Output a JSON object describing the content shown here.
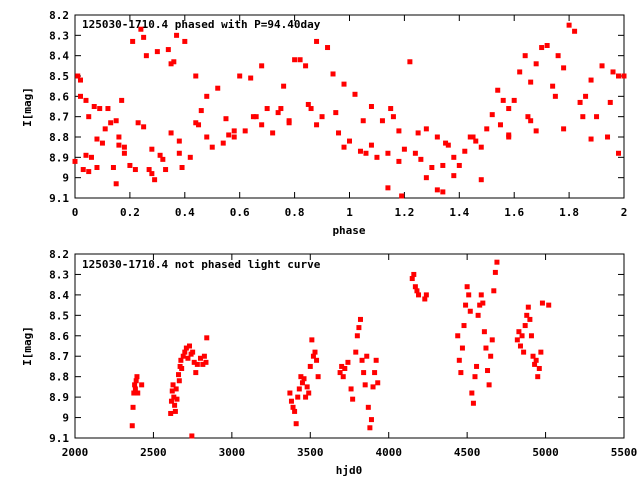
{
  "chart_data": [
    {
      "type": "scatter",
      "title": "125030-1710.4 phased with P=94.40day",
      "xlabel": "phase",
      "ylabel": "I[mag]",
      "xlim": [
        0,
        2
      ],
      "ylim": [
        9.1,
        8.2
      ],
      "y_inverted": true,
      "grid": false,
      "marker_color": "#ff0000",
      "xticks": [
        "0",
        "0.2",
        "0.4",
        "0.6",
        "0.8",
        "1",
        "1.2",
        "1.4",
        "1.6",
        "1.8",
        "2"
      ],
      "yticks": [
        "8.2",
        "8.3",
        "8.4",
        "8.5",
        "8.6",
        "8.7",
        "8.8",
        "8.9",
        "9",
        "9.1"
      ],
      "points": [
        [
          0.0,
          8.92
        ],
        [
          0.01,
          8.5
        ],
        [
          0.02,
          8.6
        ],
        [
          0.03,
          8.96
        ],
        [
          0.04,
          8.62
        ],
        [
          0.05,
          8.97
        ],
        [
          0.06,
          8.9
        ],
        [
          0.07,
          8.65
        ],
        [
          0.08,
          8.95
        ],
        [
          0.09,
          8.66
        ],
        [
          0.1,
          8.83
        ],
        [
          0.11,
          8.76
        ],
        [
          0.12,
          8.66
        ],
        [
          0.13,
          8.73
        ],
        [
          0.14,
          8.95
        ],
        [
          0.15,
          9.03
        ],
        [
          0.16,
          8.8
        ],
        [
          0.17,
          8.62
        ],
        [
          0.18,
          8.88
        ],
        [
          0.2,
          8.94
        ],
        [
          0.21,
          8.33
        ],
        [
          0.22,
          8.96
        ],
        [
          0.23,
          8.73
        ],
        [
          0.24,
          8.27
        ],
        [
          0.25,
          8.31
        ],
        [
          0.26,
          8.4
        ],
        [
          0.27,
          8.96
        ],
        [
          0.28,
          8.98
        ],
        [
          0.29,
          9.01
        ],
        [
          0.3,
          8.38
        ],
        [
          0.31,
          8.89
        ],
        [
          0.32,
          8.91
        ],
        [
          0.33,
          8.96
        ],
        [
          0.34,
          8.37
        ],
        [
          0.35,
          8.44
        ],
        [
          0.36,
          8.43
        ],
        [
          0.37,
          8.3
        ],
        [
          0.38,
          8.88
        ],
        [
          0.39,
          8.95
        ],
        [
          0.4,
          8.33
        ],
        [
          0.42,
          8.9
        ],
        [
          0.44,
          8.73
        ],
        [
          0.46,
          8.67
        ],
        [
          0.48,
          8.6
        ],
        [
          0.5,
          8.85
        ],
        [
          0.52,
          8.56
        ],
        [
          0.54,
          8.83
        ],
        [
          0.56,
          8.79
        ],
        [
          0.58,
          8.8
        ],
        [
          0.6,
          8.5
        ],
        [
          0.62,
          8.77
        ],
        [
          0.64,
          8.51
        ],
        [
          0.66,
          8.7
        ],
        [
          0.68,
          8.45
        ],
        [
          0.7,
          8.66
        ],
        [
          0.72,
          8.78
        ],
        [
          0.74,
          8.68
        ],
        [
          0.76,
          8.55
        ],
        [
          0.78,
          8.73
        ],
        [
          0.8,
          8.42
        ],
        [
          0.82,
          8.42
        ],
        [
          0.84,
          8.45
        ],
        [
          0.86,
          8.66
        ],
        [
          0.88,
          8.33
        ],
        [
          0.9,
          8.7
        ],
        [
          0.92,
          8.36
        ],
        [
          0.94,
          8.49
        ],
        [
          0.96,
          8.78
        ],
        [
          0.98,
          8.54
        ],
        [
          1.0,
          8.82
        ],
        [
          1.02,
          8.59
        ],
        [
          1.04,
          8.87
        ],
        [
          1.06,
          8.88
        ],
        [
          1.08,
          8.65
        ],
        [
          1.1,
          8.9
        ],
        [
          1.12,
          8.72
        ],
        [
          1.14,
          8.88
        ],
        [
          1.16,
          8.7
        ],
        [
          1.18,
          8.77
        ],
        [
          1.2,
          8.86
        ],
        [
          1.22,
          8.43
        ],
        [
          1.24,
          8.88
        ],
        [
          1.26,
          8.91
        ],
        [
          1.28,
          8.76
        ],
        [
          1.3,
          8.95
        ],
        [
          1.32,
          8.8
        ],
        [
          1.34,
          8.94
        ],
        [
          1.36,
          8.84
        ],
        [
          1.38,
          8.9
        ],
        [
          1.4,
          8.94
        ],
        [
          1.42,
          8.87
        ],
        [
          1.44,
          8.8
        ],
        [
          1.46,
          8.82
        ],
        [
          1.48,
          8.85
        ],
        [
          1.5,
          8.76
        ],
        [
          1.52,
          8.69
        ],
        [
          1.54,
          8.57
        ],
        [
          1.56,
          8.62
        ],
        [
          1.58,
          8.66
        ],
        [
          1.6,
          8.62
        ],
        [
          1.62,
          8.48
        ],
        [
          1.64,
          8.4
        ],
        [
          1.66,
          8.53
        ],
        [
          1.68,
          8.44
        ],
        [
          1.7,
          8.36
        ],
        [
          1.72,
          8.35
        ],
        [
          1.74,
          8.55
        ],
        [
          1.76,
          8.4
        ],
        [
          1.78,
          8.46
        ],
        [
          1.8,
          8.25
        ],
        [
          1.82,
          8.28
        ],
        [
          1.84,
          8.63
        ],
        [
          1.86,
          8.6
        ],
        [
          1.88,
          8.52
        ],
        [
          1.9,
          8.7
        ],
        [
          1.92,
          8.45
        ],
        [
          1.94,
          8.8
        ],
        [
          1.96,
          8.48
        ],
        [
          1.98,
          8.5
        ],
        [
          2.0,
          8.5
        ],
        [
          0.05,
          8.7
        ],
        [
          0.15,
          8.72
        ],
        [
          0.25,
          8.75
        ],
        [
          0.35,
          8.78
        ],
        [
          0.45,
          8.74
        ],
        [
          0.55,
          8.71
        ],
        [
          0.65,
          8.7
        ],
        [
          0.75,
          8.66
        ],
        [
          0.85,
          8.64
        ],
        [
          0.95,
          8.68
        ],
        [
          1.05,
          8.72
        ],
        [
          1.15,
          8.66
        ],
        [
          1.25,
          8.78
        ],
        [
          1.35,
          8.83
        ],
        [
          1.45,
          8.8
        ],
        [
          1.55,
          8.74
        ],
        [
          1.65,
          8.7
        ],
        [
          1.75,
          8.6
        ],
        [
          1.85,
          8.7
        ],
        [
          1.95,
          8.63
        ],
        [
          0.08,
          8.81
        ],
        [
          0.18,
          8.85
        ],
        [
          0.28,
          8.86
        ],
        [
          0.38,
          8.82
        ],
        [
          0.48,
          8.8
        ],
        [
          0.58,
          8.77
        ],
        [
          0.68,
          8.74
        ],
        [
          0.78,
          8.72
        ],
        [
          0.88,
          8.74
        ],
        [
          0.98,
          8.85
        ],
        [
          1.08,
          8.84
        ],
        [
          1.18,
          8.92
        ],
        [
          1.28,
          9.0
        ],
        [
          1.38,
          8.99
        ],
        [
          1.48,
          9.01
        ],
        [
          1.58,
          8.79
        ],
        [
          1.68,
          8.77
        ],
        [
          1.78,
          8.76
        ],
        [
          1.88,
          8.81
        ],
        [
          1.98,
          8.88
        ],
        [
          1.32,
          9.06
        ],
        [
          1.34,
          9.07
        ],
        [
          1.19,
          9.09
        ],
        [
          1.14,
          9.05
        ],
        [
          0.04,
          8.89
        ],
        [
          0.02,
          8.52
        ],
        [
          0.16,
          8.84
        ],
        [
          0.44,
          8.5
        ],
        [
          1.58,
          8.8
        ],
        [
          1.66,
          8.72
        ]
      ]
    },
    {
      "type": "scatter",
      "title": "125030-1710.4 not phased light curve",
      "xlabel": "hjd0",
      "ylabel": "I[mag]",
      "xlim": [
        2000,
        5500
      ],
      "ylim": [
        9.1,
        8.2
      ],
      "y_inverted": true,
      "grid": false,
      "marker_color": "#ff0000",
      "xticks": [
        "2000",
        "2500",
        "3000",
        "3500",
        "4000",
        "4500",
        "5000",
        "5500"
      ],
      "yticks": [
        "8.2",
        "8.3",
        "8.4",
        "8.5",
        "8.6",
        "8.7",
        "8.8",
        "8.9",
        "9",
        "9.1"
      ],
      "points": [
        [
          2365,
          9.04
        ],
        [
          2370,
          8.95
        ],
        [
          2375,
          8.88
        ],
        [
          2380,
          8.84
        ],
        [
          2385,
          8.86
        ],
        [
          2390,
          8.82
        ],
        [
          2395,
          8.8
        ],
        [
          2400,
          8.88
        ],
        [
          2425,
          8.84
        ],
        [
          2610,
          8.98
        ],
        [
          2615,
          8.92
        ],
        [
          2620,
          8.87
        ],
        [
          2625,
          8.84
        ],
        [
          2630,
          8.9
        ],
        [
          2635,
          8.94
        ],
        [
          2640,
          8.97
        ],
        [
          2645,
          8.86
        ],
        [
          2650,
          8.91
        ],
        [
          2660,
          8.79
        ],
        [
          2665,
          8.82
        ],
        [
          2670,
          8.75
        ],
        [
          2675,
          8.72
        ],
        [
          2680,
          8.76
        ],
        [
          2690,
          8.7
        ],
        [
          2700,
          8.68
        ],
        [
          2710,
          8.66
        ],
        [
          2720,
          8.71
        ],
        [
          2730,
          8.65
        ],
        [
          2740,
          8.69
        ],
        [
          2745,
          9.09
        ],
        [
          2750,
          8.68
        ],
        [
          2760,
          8.73
        ],
        [
          2770,
          8.78
        ],
        [
          2780,
          8.74
        ],
        [
          2800,
          8.71
        ],
        [
          2815,
          8.74
        ],
        [
          2825,
          8.7
        ],
        [
          2835,
          8.73
        ],
        [
          2840,
          8.61
        ],
        [
          3370,
          8.88
        ],
        [
          3380,
          8.92
        ],
        [
          3390,
          8.95
        ],
        [
          3400,
          8.97
        ],
        [
          3410,
          9.03
        ],
        [
          3420,
          8.9
        ],
        [
          3430,
          8.86
        ],
        [
          3440,
          8.8
        ],
        [
          3450,
          8.83
        ],
        [
          3460,
          8.81
        ],
        [
          3470,
          8.9
        ],
        [
          3480,
          8.85
        ],
        [
          3490,
          8.88
        ],
        [
          3500,
          8.75
        ],
        [
          3510,
          8.62
        ],
        [
          3520,
          8.7
        ],
        [
          3530,
          8.68
        ],
        [
          3540,
          8.72
        ],
        [
          3550,
          8.8
        ],
        [
          3690,
          8.78
        ],
        [
          3700,
          8.75
        ],
        [
          3710,
          8.8
        ],
        [
          3720,
          8.76
        ],
        [
          3740,
          8.73
        ],
        [
          3760,
          8.86
        ],
        [
          3770,
          8.91
        ],
        [
          3790,
          8.68
        ],
        [
          3800,
          8.6
        ],
        [
          3810,
          8.56
        ],
        [
          3820,
          8.52
        ],
        [
          3830,
          8.72
        ],
        [
          3840,
          8.78
        ],
        [
          3850,
          8.84
        ],
        [
          3860,
          8.7
        ],
        [
          3870,
          8.95
        ],
        [
          3880,
          9.05
        ],
        [
          3890,
          9.01
        ],
        [
          3900,
          8.85
        ],
        [
          3910,
          8.78
        ],
        [
          3920,
          8.72
        ],
        [
          3930,
          8.83
        ],
        [
          4150,
          8.32
        ],
        [
          4160,
          8.3
        ],
        [
          4170,
          8.36
        ],
        [
          4180,
          8.38
        ],
        [
          4190,
          8.4
        ],
        [
          4230,
          8.42
        ],
        [
          4240,
          8.4
        ],
        [
          4440,
          8.6
        ],
        [
          4450,
          8.72
        ],
        [
          4460,
          8.78
        ],
        [
          4470,
          8.66
        ],
        [
          4480,
          8.55
        ],
        [
          4490,
          8.45
        ],
        [
          4500,
          8.36
        ],
        [
          4510,
          8.4
        ],
        [
          4520,
          8.48
        ],
        [
          4530,
          8.88
        ],
        [
          4540,
          8.93
        ],
        [
          4550,
          8.8
        ],
        [
          4560,
          8.75
        ],
        [
          4570,
          8.5
        ],
        [
          4580,
          8.45
        ],
        [
          4590,
          8.4
        ],
        [
          4600,
          8.44
        ],
        [
          4610,
          8.58
        ],
        [
          4620,
          8.66
        ],
        [
          4630,
          8.77
        ],
        [
          4640,
          8.84
        ],
        [
          4650,
          8.7
        ],
        [
          4660,
          8.62
        ],
        [
          4670,
          8.38
        ],
        [
          4680,
          8.29
        ],
        [
          4690,
          8.24
        ],
        [
          4820,
          8.62
        ],
        [
          4830,
          8.58
        ],
        [
          4840,
          8.65
        ],
        [
          4850,
          8.6
        ],
        [
          4860,
          8.68
        ],
        [
          4870,
          8.55
        ],
        [
          4880,
          8.5
        ],
        [
          4890,
          8.46
        ],
        [
          4900,
          8.52
        ],
        [
          4910,
          8.6
        ],
        [
          4920,
          8.7
        ],
        [
          4930,
          8.74
        ],
        [
          4940,
          8.72
        ],
        [
          4950,
          8.8
        ],
        [
          4960,
          8.76
        ],
        [
          4970,
          8.68
        ],
        [
          4980,
          8.44
        ],
        [
          5020,
          8.45
        ]
      ]
    }
  ]
}
